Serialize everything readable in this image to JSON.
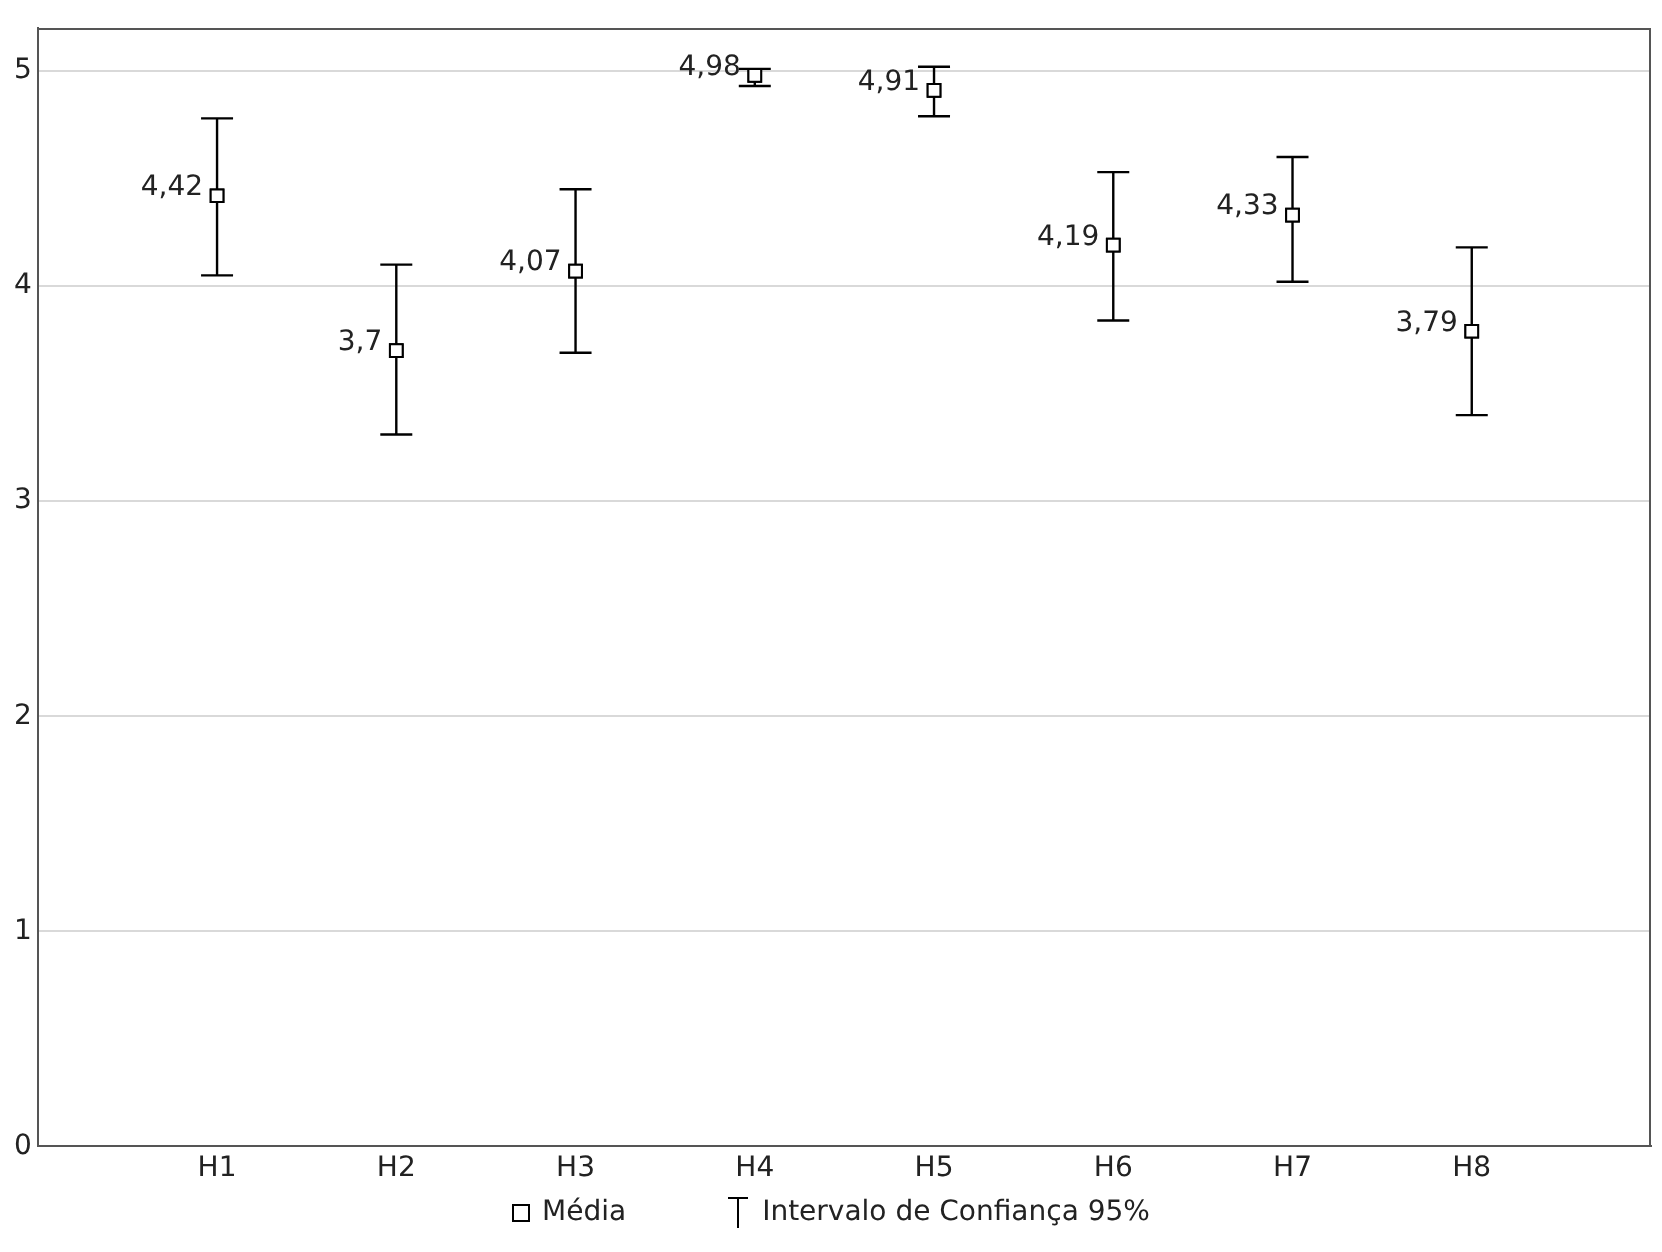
{
  "chart_data": {
    "type": "scatter",
    "categories": [
      "H1",
      "H2",
      "H3",
      "H4",
      "H5",
      "H6",
      "H7",
      "H8"
    ],
    "series": [
      {
        "name": "Média",
        "color": "#000000",
        "values": [
          4.42,
          3.7,
          4.07,
          4.98,
          4.91,
          4.19,
          4.33,
          3.79
        ],
        "errors": [
          [
            4.05,
            4.78
          ],
          [
            3.31,
            4.1
          ],
          [
            3.69,
            4.45
          ],
          [
            4.93,
            5.01
          ],
          [
            4.79,
            5.02
          ],
          [
            3.84,
            4.53
          ],
          [
            4.02,
            4.6
          ],
          [
            3.4,
            4.18
          ]
        ],
        "value_labels": [
          "4,42",
          "3,7",
          "4,07",
          "4,98",
          "4,91",
          "4,19",
          "4,33",
          "3,79"
        ]
      }
    ],
    "annotations": [
      "Intervalo de Confiança 95%"
    ],
    "ylim": [
      0,
      5.2
    ],
    "yticks": [
      0,
      1,
      2,
      3,
      4,
      5
    ],
    "grid": "y",
    "legend": "bottom",
    "marker": "square"
  }
}
